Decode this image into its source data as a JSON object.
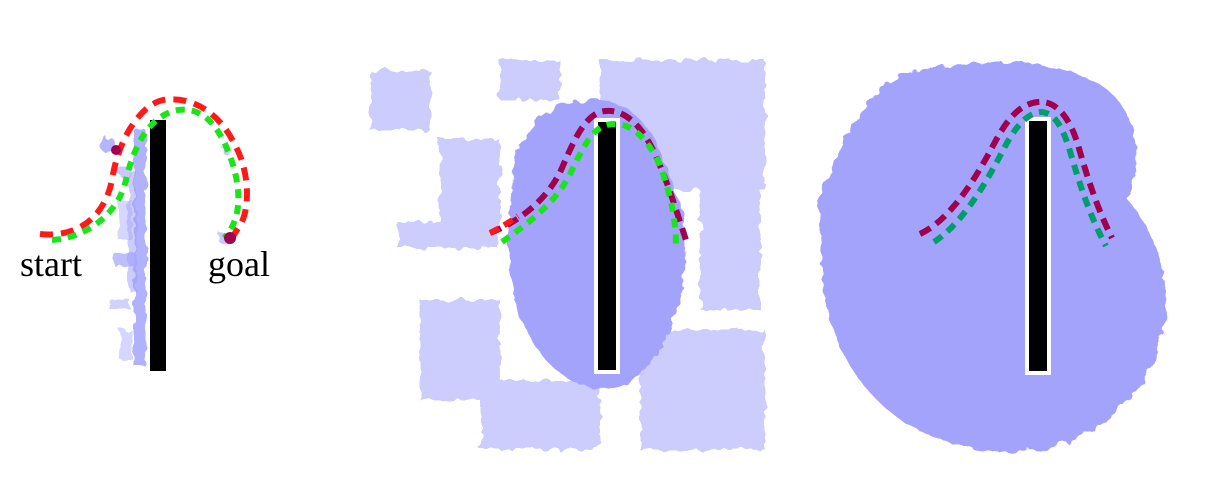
{
  "labels": {
    "start": "start",
    "goal": "goal"
  },
  "colors": {
    "background": "#ffffff",
    "region": "#a3a3fc",
    "wall": "#000000",
    "path_red": "#ff1a1a",
    "path_green": "#19e619",
    "path_crimson": "#a0004e",
    "path_teal": "#009e6b"
  },
  "panels": [
    {
      "name": "panel-left",
      "region_style": "sparse-samples",
      "paths": [
        "red-dashed",
        "green-dashed"
      ]
    },
    {
      "name": "panel-middle",
      "region_style": "blob-with-scattered-samples",
      "paths": [
        "crimson-dashed",
        "green-dashed"
      ]
    },
    {
      "name": "panel-right",
      "region_style": "solid-blob",
      "paths": [
        "crimson-dashed",
        "teal-dashed"
      ]
    }
  ]
}
